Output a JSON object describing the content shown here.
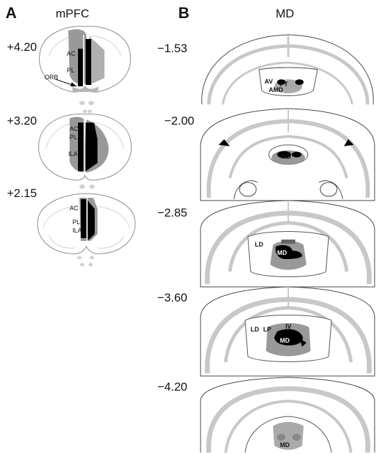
{
  "panels": {
    "a": {
      "letter": "A",
      "title": "mPFC",
      "sections": [
        {
          "coord": "+4.20",
          "labels": {
            "ac": "AC",
            "pl": "PL",
            "orb": "ORB"
          }
        },
        {
          "coord": "+3.20",
          "labels": {
            "ac": "AC",
            "pl": "PL",
            "ila": "ILA"
          }
        },
        {
          "coord": "+2.15",
          "labels": {
            "ac": "AC",
            "pl": "PL",
            "ila": "ILA"
          }
        }
      ]
    },
    "b": {
      "letter": "B",
      "title": "MD",
      "sections": [
        {
          "coord": "−1.53",
          "labels": {
            "av": "AV",
            "pt": "PT",
            "amd": "AMD"
          }
        },
        {
          "coord": "−2.00",
          "labels": {
            "md": "MD"
          }
        },
        {
          "coord": "−2.85",
          "labels": {
            "ld": "LD",
            "md": "MD"
          }
        },
        {
          "coord": "−3.60",
          "labels": {
            "ld": "LD",
            "lp": "LP",
            "md": "MD",
            "iv": "IV"
          }
        },
        {
          "coord": "−4.20",
          "labels": {
            "md": "MD"
          }
        }
      ]
    }
  },
  "colors": {
    "lesion": "#000000",
    "spread": "#999999",
    "outline": "#8a8a8a",
    "tract": "#c8c8c8"
  }
}
